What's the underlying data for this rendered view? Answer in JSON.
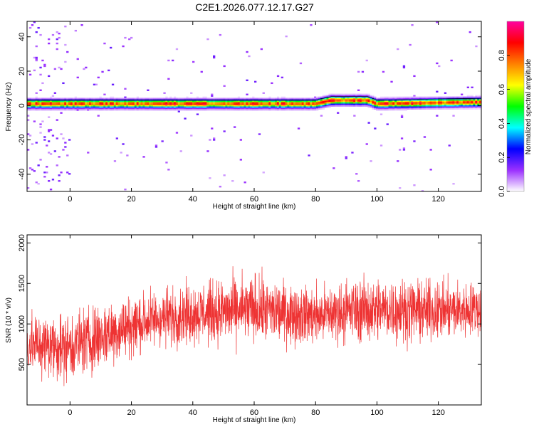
{
  "figure": {
    "title": "C2E1.2026.077.12.17.G27"
  },
  "chart_data": [
    {
      "type": "heatmap",
      "xlabel": "Height of straight line (km)",
      "ylabel": "Frequency (Hz)",
      "xlim": [
        -14,
        134
      ],
      "ylim": [
        -50,
        49
      ],
      "xticks": [
        "0",
        "20",
        "40",
        "60",
        "80",
        "100",
        "120"
      ],
      "yticks": [
        "40",
        "20",
        "0",
        "-20",
        "-40"
      ],
      "colorbar": {
        "label": "Normalized spectral amplitude",
        "range": [
          0,
          1
        ],
        "ticks": [
          "0.0",
          "0.2",
          "0.4",
          "0.6",
          "0.8"
        ],
        "colors": [
          "#ffffff",
          "#9b30ff",
          "#0000ff",
          "#00ffff",
          "#00ff00",
          "#ffff00",
          "#ff8000",
          "#ff0000",
          "#ff00a0"
        ]
      },
      "band": {
        "description_center_hz": [
          {
            "x": -14,
            "f": 1
          },
          {
            "x": 80,
            "f": 1
          },
          {
            "x": 85,
            "f": 3
          },
          {
            "x": 97,
            "f": 3
          },
          {
            "x": 100,
            "f": 1
          },
          {
            "x": 134,
            "f": 2
          }
        ],
        "half_width_hz": 2.5,
        "peak_amplitude": 0.95
      }
    },
    {
      "type": "line",
      "xlabel": "Height of straight line (km)",
      "ylabel": "SNR (10 * v/v)",
      "xlim": [
        -14,
        134
      ],
      "ylim": [
        0,
        2100
      ],
      "xticks": [
        "0",
        "20",
        "40",
        "60",
        "80",
        "100",
        "120"
      ],
      "yticks": [
        "2000",
        "1500",
        "1000",
        "500"
      ],
      "color": "#ee3333",
      "envelope": {
        "x": [
          -14,
          0,
          10,
          20,
          30,
          40,
          50,
          60,
          70,
          80,
          90,
          100,
          110,
          120,
          134
        ],
        "mean": [
          750,
          720,
          850,
          980,
          1080,
          1130,
          1150,
          1180,
          1140,
          1100,
          1160,
          1180,
          1170,
          1160,
          1180
        ],
        "spread": [
          350,
          380,
          380,
          340,
          320,
          330,
          360,
          380,
          340,
          320,
          340,
          360,
          340,
          320,
          300
        ]
      }
    }
  ]
}
